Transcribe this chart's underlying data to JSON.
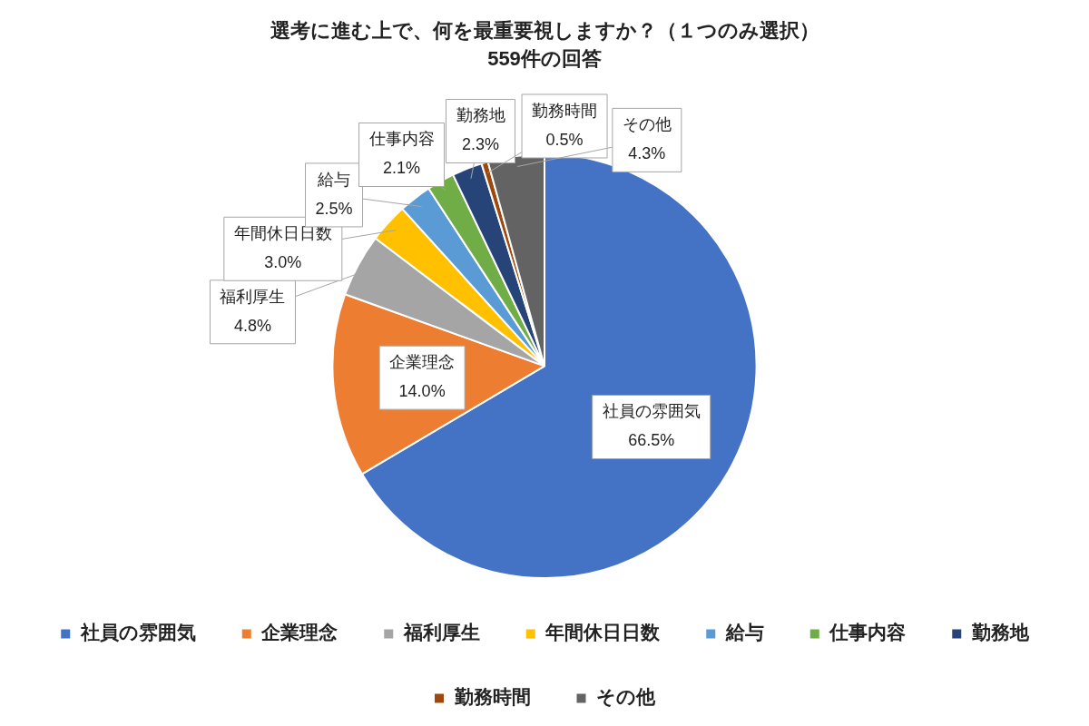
{
  "chart_data": {
    "type": "pie",
    "title": "選考に進む上で、何を最重要視しますか？（１つのみ選択）",
    "subtitle": "559件の回答",
    "categories": [
      "社員の雰囲気",
      "企業理念",
      "福利厚生",
      "年間休日日数",
      "給与",
      "仕事内容",
      "勤務地",
      "勤務時間",
      "その他"
    ],
    "values": [
      66.5,
      14.0,
      4.8,
      3.0,
      2.5,
      2.1,
      2.3,
      0.5,
      4.3
    ],
    "colors": [
      "#4472c4",
      "#ed7d31",
      "#a5a5a5",
      "#ffc000",
      "#5b9bd5",
      "#70ad47",
      "#264478",
      "#9e480e",
      "#636363"
    ],
    "value_labels": [
      "66.5%",
      "14.0%",
      "4.8%",
      "3.0%",
      "2.5%",
      "2.1%",
      "2.3%",
      "0.5%",
      "4.3%"
    ],
    "legend": "bottom"
  }
}
